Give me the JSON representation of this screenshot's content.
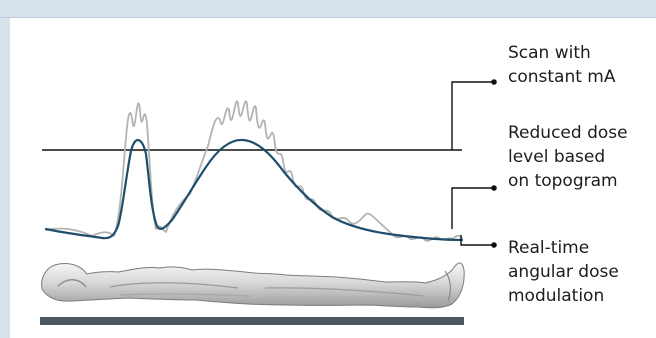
{
  "labels": {
    "constant_ma": "Scan with\nconstant mA",
    "reduced_dose": "Reduced dose\nlevel based\non topogram",
    "real_time": "Real-time\nangular dose\nmodulation"
  },
  "icons": {
    "patient": "patient-figure-icon",
    "table": "scan-table-icon"
  },
  "colors": {
    "constant_line": "#111111",
    "topogram_curve": "#1f4e6d",
    "realtime_curve": "#b3b3b3",
    "callout": "#111111",
    "panel_border": "#b9c9d7"
  }
}
